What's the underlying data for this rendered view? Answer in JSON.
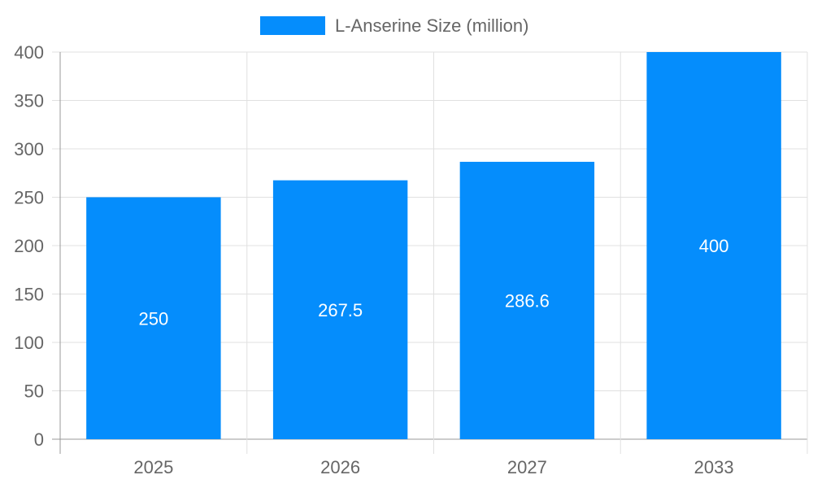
{
  "chart_data": {
    "type": "bar",
    "categories": [
      "2025",
      "2026",
      "2027",
      "2033"
    ],
    "series": [
      {
        "name": "L-Anserine Size (million)",
        "values": [
          250,
          267.5,
          286.6,
          400
        ],
        "color": "#058DFC"
      }
    ],
    "data_labels": [
      "250",
      "267.5",
      "286.6",
      "400"
    ],
    "ylim": [
      0,
      400
    ],
    "yticks": [
      0,
      50,
      100,
      150,
      200,
      250,
      300,
      350,
      400
    ],
    "ytick_labels": [
      "0",
      "50",
      "100",
      "150",
      "200",
      "250",
      "300",
      "350",
      "400"
    ],
    "xlabel": "",
    "ylabel": "",
    "grid": true,
    "legend": "top-center"
  }
}
